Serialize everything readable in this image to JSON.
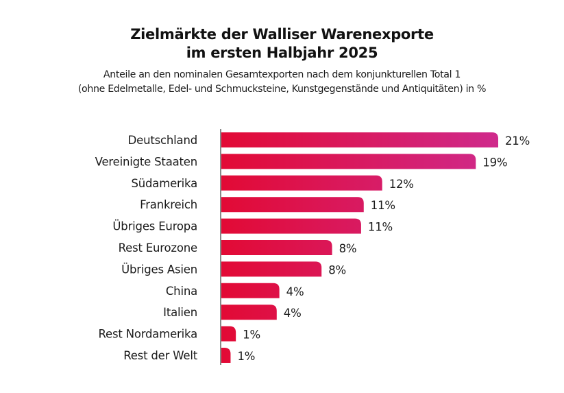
{
  "chart_data": {
    "type": "bar",
    "orientation": "horizontal",
    "title": [
      "Zielmärkte der Walliser Warenexporte",
      "im ersten Halbjahr 2025"
    ],
    "subtitle": [
      "Anteile an den nominalen Gesamtexporten nach dem konjunkturellen Total 1",
      "(ohne Edelmetalle, Edel- und Schmucksteine, Kunstgegenstände und Antiquitäten) in %"
    ],
    "xlabel": "",
    "ylabel": "",
    "unit": "%",
    "categories": [
      "Deutschland",
      "Vereinigte Staaten",
      "Südamerika",
      "Frankreich",
      "Übriges Europa",
      "Rest Eurozone",
      "Übriges Asien",
      "China",
      "Italien",
      "Rest Nordamerika",
      "Rest der Welt"
    ],
    "values": [
      21.0,
      19.3,
      12.2,
      10.8,
      10.6,
      8.4,
      7.6,
      4.4,
      4.2,
      1.1,
      0.7
    ],
    "value_labels": [
      "21%",
      "19%",
      "12%",
      "11%",
      "11%",
      "8%",
      "8%",
      "4%",
      "4%",
      "1%",
      "1%"
    ],
    "xlim": [
      0,
      21
    ],
    "grid": false,
    "legend": "none",
    "colors": {
      "bar_start": "#e20a35",
      "bar_end": "#cf2a8c",
      "axis": "#888888"
    }
  }
}
